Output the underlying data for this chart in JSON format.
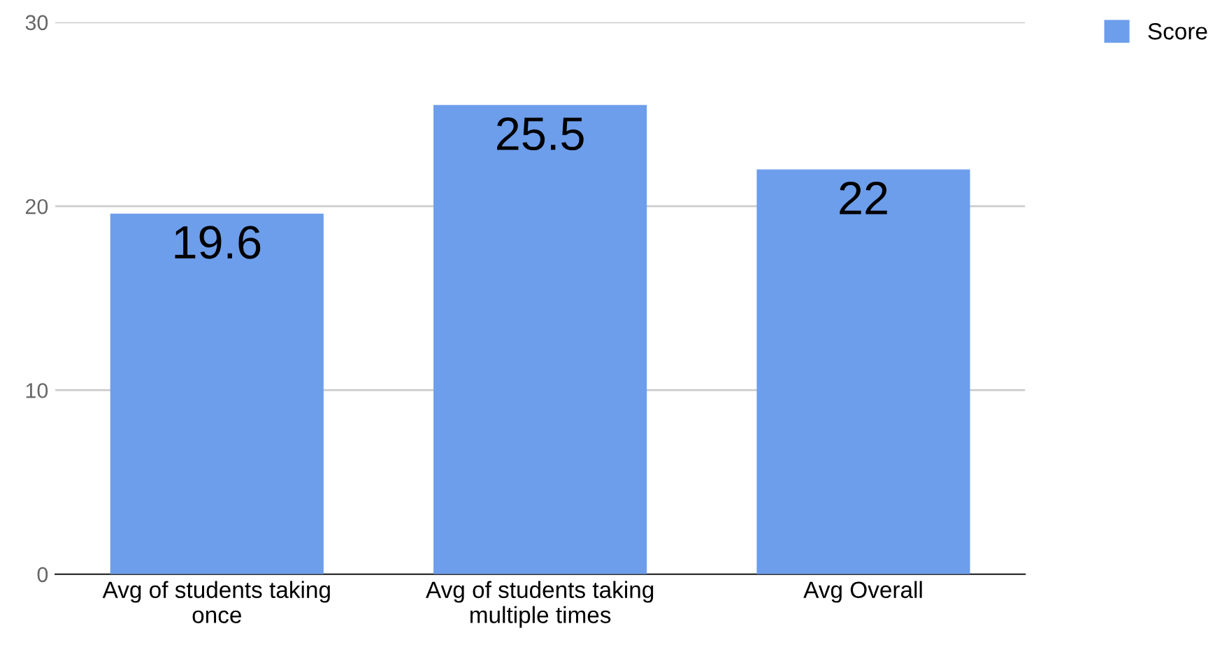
{
  "chart_data": {
    "type": "bar",
    "categories": [
      "Avg of students taking\nonce",
      "Avg of students taking\nmultiple times",
      "Avg Overall"
    ],
    "series": [
      {
        "name": "Score",
        "color": "#6d9eeb",
        "values": [
          19.6,
          25.5,
          22
        ]
      }
    ],
    "ylim": [
      0,
      30
    ],
    "yticks": [
      0,
      10,
      20,
      30
    ],
    "grid": "y",
    "legend": "top right",
    "data_labels": true
  }
}
